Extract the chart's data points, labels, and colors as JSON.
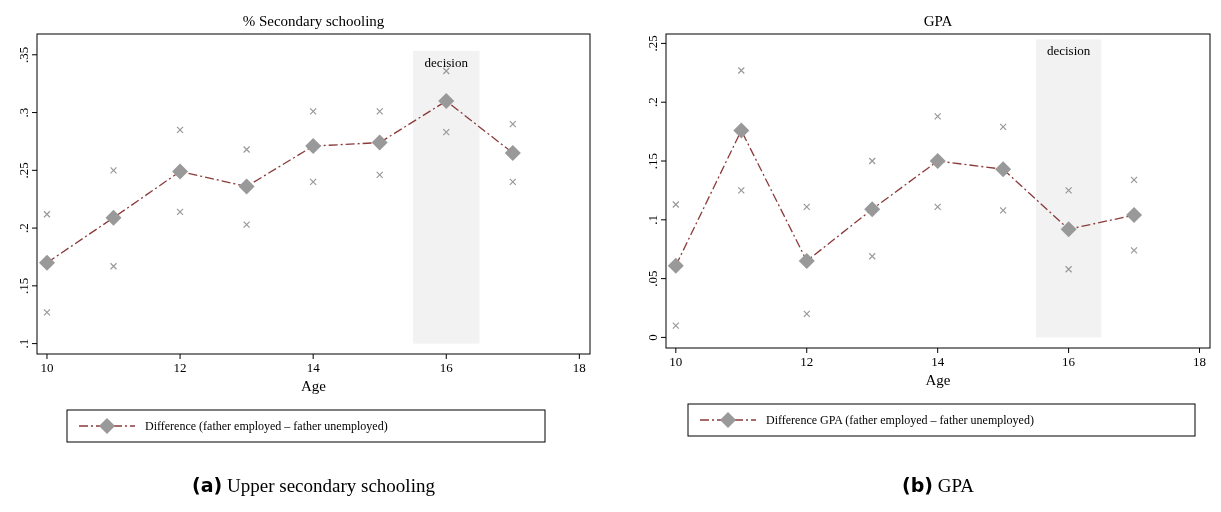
{
  "chart_data": [
    {
      "type": "line",
      "title": "% Secondary schooling",
      "xlabel": "Age",
      "x": [
        10,
        11,
        12,
        13,
        14,
        15,
        16,
        17
      ],
      "series": [
        {
          "name": "Difference (father employed – father unemployed)",
          "color": "#8b3a3a",
          "values": [
            0.17,
            0.209,
            0.249,
            0.236,
            0.271,
            0.274,
            0.31,
            0.265
          ],
          "marker": "diamond",
          "line_style": "dashed"
        },
        {
          "type": "scatter",
          "color": "#999999",
          "marker": "cross",
          "values": [
            0.212,
            0.25,
            0.285,
            0.268,
            0.301,
            0.301,
            0.336,
            0.29
          ]
        },
        {
          "type": "scatter",
          "color": "#999999",
          "marker": "cross",
          "values": [
            0.127,
            0.167,
            0.214,
            0.203,
            0.24,
            0.246,
            0.283,
            0.24
          ]
        }
      ],
      "xlim": [
        9.85,
        18.16
      ],
      "xticks": [
        10,
        12,
        14,
        16,
        18
      ],
      "ylim": [
        0.091,
        0.368
      ],
      "yticks": [
        {
          "value": 0.1,
          "label": ".1"
        },
        {
          "value": 0.15,
          "label": ".15"
        },
        {
          "value": 0.2,
          "label": ".2"
        },
        {
          "value": 0.25,
          "label": ".25"
        },
        {
          "value": 0.3,
          "label": ".3"
        },
        {
          "value": 0.35,
          "label": ".35"
        }
      ],
      "bands": [
        {
          "axis": "x",
          "from": 15.5,
          "to": 16.5,
          "label": "decision",
          "color": "#f2f2f2"
        }
      ],
      "legend": "bottom",
      "grid": false,
      "annotations": [
        "(a) Upper secondary schooling"
      ]
    },
    {
      "type": "line",
      "title": "GPA",
      "xlabel": "Age",
      "x": [
        10,
        11,
        12,
        13,
        14,
        15,
        16,
        17
      ],
      "series": [
        {
          "name": "Difference GPA (father employed – father unemployed)",
          "color": "#8b3a3a",
          "values": [
            0.061,
            0.176,
            0.065,
            0.109,
            0.15,
            0.143,
            0.092,
            0.104
          ],
          "marker": "diamond",
          "line_style": "dashed"
        },
        {
          "type": "scatter",
          "color": "#999999",
          "marker": "cross",
          "values": [
            0.113,
            0.227,
            0.111,
            0.15,
            0.188,
            0.179,
            0.125,
            0.134
          ]
        },
        {
          "type": "scatter",
          "color": "#999999",
          "marker": "cross",
          "values": [
            0.01,
            0.125,
            0.02,
            0.069,
            0.111,
            0.108,
            0.058,
            0.074
          ]
        }
      ],
      "xlim": [
        9.85,
        18.16
      ],
      "xticks": [
        10,
        12,
        14,
        16,
        18
      ],
      "ylim": [
        -0.009,
        0.258
      ],
      "yticks": [
        {
          "value": 0,
          "label": "0"
        },
        {
          "value": 0.05,
          "label": ".05"
        },
        {
          "value": 0.1,
          "label": ".1"
        },
        {
          "value": 0.15,
          "label": ".15"
        },
        {
          "value": 0.2,
          "label": ".2"
        },
        {
          "value": 0.25,
          "label": ".25"
        }
      ],
      "bands": [
        {
          "axis": "x",
          "from": 15.5,
          "to": 16.5,
          "label": "decision",
          "color": "#f2f2f2"
        }
      ],
      "legend": "bottom",
      "grid": false,
      "annotations": [
        "(b) GPA"
      ]
    }
  ]
}
